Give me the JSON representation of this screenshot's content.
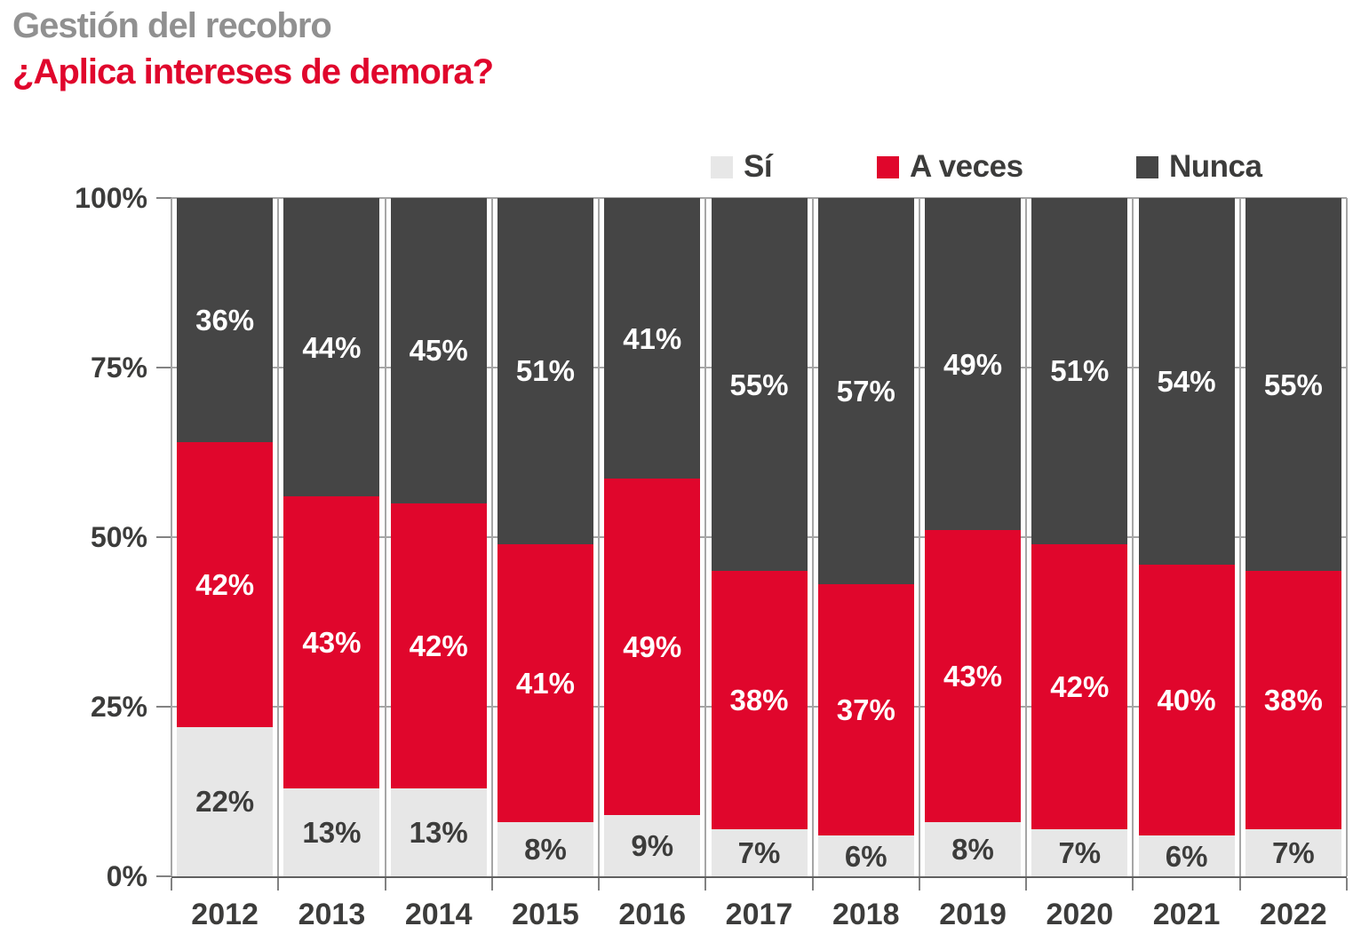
{
  "header": {
    "subtitle": "Gestión del recobro",
    "title": "¿Aplica intereses de demora?"
  },
  "colors": {
    "title_gray": "#909090",
    "title_red": "#e0062c",
    "axis_text": "#3c3c3b",
    "grid": "#a6a6a6",
    "tick": "#828282",
    "axis_line": "#606060",
    "si": "#e7e7e7",
    "a_veces": "#e0062c",
    "nunca": "#454545"
  },
  "chart_data": {
    "type": "bar",
    "stacked": true,
    "percentage": true,
    "value_suffix": "%",
    "title": "¿Aplica intereses de demora?",
    "subtitle": "Gestión del recobro",
    "categories": [
      "2012",
      "2013",
      "2014",
      "2015",
      "2016",
      "2017",
      "2018",
      "2019",
      "2020",
      "2021",
      "2022"
    ],
    "series": [
      {
        "name": "Sí",
        "slug": "si",
        "color": "#e7e7e7",
        "label_color": "#3c3c3b",
        "values": [
          22,
          13,
          13,
          8,
          9,
          7,
          6,
          8,
          7,
          6,
          7
        ]
      },
      {
        "name": "A veces",
        "slug": "a-veces",
        "color": "#e0062c",
        "label_color": "#ffffff",
        "values": [
          42,
          43,
          42,
          41,
          49,
          38,
          37,
          43,
          42,
          40,
          38
        ]
      },
      {
        "name": "Nunca",
        "slug": "nunca",
        "color": "#454545",
        "label_color": "#ffffff",
        "values": [
          36,
          44,
          45,
          51,
          41,
          55,
          57,
          49,
          51,
          54,
          55
        ]
      }
    ],
    "y_axis": {
      "ticks": [
        {
          "label": "100%",
          "value": 100
        },
        {
          "label": "75%",
          "value": 75
        },
        {
          "label": "50%",
          "value": 50
        },
        {
          "label": "25%",
          "value": 25
        },
        {
          "label": "0%",
          "value": 0
        }
      ],
      "gridline_values": [
        25,
        50,
        75,
        100
      ]
    },
    "ylim": [
      0,
      100
    ],
    "grid": "between-categories",
    "legend_position": "top"
  }
}
